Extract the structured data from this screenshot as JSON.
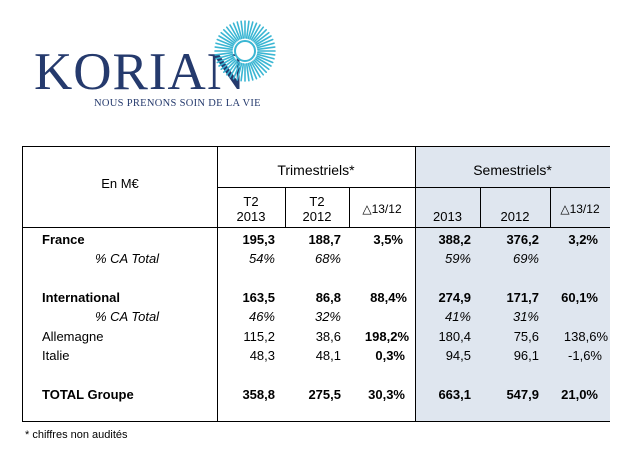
{
  "logo": {
    "word": "KORIAN",
    "tagline": "NOUS PRENONS SOIN DE LA VIE",
    "accent": "#3ab6d3",
    "navy": "#253a6d"
  },
  "table": {
    "unit_label": "En M€",
    "group_headers": [
      "Trimestriels*",
      "Semestriels*"
    ],
    "columns": [
      {
        "line1": "T2",
        "line2": "2013"
      },
      {
        "line1": "T2",
        "line2": "2012"
      },
      {
        "line1": "△13/12",
        "line2": ""
      },
      {
        "line1": "",
        "line2": "2013"
      },
      {
        "line1": "",
        "line2": "2012"
      },
      {
        "line1": "△13/12",
        "line2": ""
      }
    ],
    "rows": [
      {
        "label": "France",
        "values": [
          "195,3",
          "188,7",
          "3,5%",
          "388,2",
          "376,2",
          "3,2%"
        ]
      },
      {
        "label": "% CA Total",
        "values": [
          "54%",
          "68%",
          "",
          "59%",
          "69%",
          ""
        ]
      },
      {
        "label": "International",
        "values": [
          "163,5",
          "86,8",
          "88,4%",
          "274,9",
          "171,7",
          "60,1%"
        ]
      },
      {
        "label": "% CA Total",
        "values": [
          "46%",
          "32%",
          "",
          "41%",
          "31%",
          ""
        ]
      },
      {
        "label": "Allemagne",
        "values": [
          "115,2",
          "38,6",
          "198,2%",
          "180,4",
          "75,6",
          "138,6%"
        ]
      },
      {
        "label": "Italie",
        "values": [
          "48,3",
          "48,1",
          "0,3%",
          "94,5",
          "96,1",
          "-1,6%"
        ]
      },
      {
        "label": "TOTAL Groupe",
        "values": [
          "358,8",
          "275,5",
          "30,3%",
          "663,1",
          "547,9",
          "21,0%"
        ]
      }
    ]
  },
  "footnote": "* chiffres non audités"
}
